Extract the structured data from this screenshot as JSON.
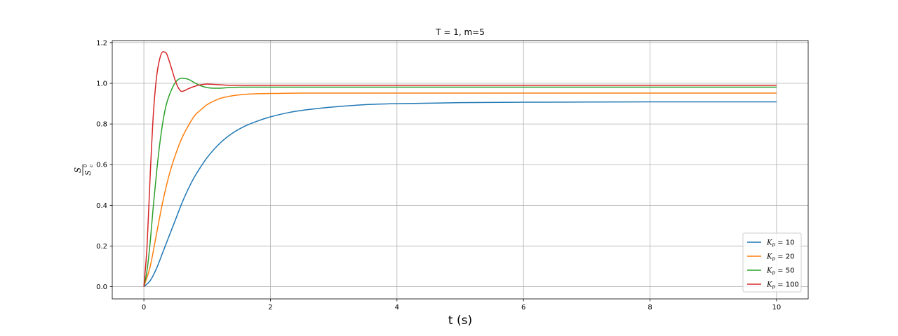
{
  "chart_data": {
    "type": "line",
    "title": "T = 1, m=5",
    "xlabel": "t (s)",
    "ylabel": {
      "numerator": "S",
      "denominator": "S",
      "denominator_sub": "c",
      "denominator_sup": "0"
    },
    "xlim": [
      -0.5,
      10.5
    ],
    "ylim": [
      -0.06,
      1.21
    ],
    "xticks": [
      0,
      2,
      4,
      6,
      8,
      10
    ],
    "xtick_labels": [
      "0",
      "2",
      "4",
      "6",
      "8",
      "10"
    ],
    "yticks": [
      0.0,
      0.2,
      0.4,
      0.6,
      0.8,
      1.0,
      1.2
    ],
    "ytick_labels": [
      "0.0",
      "0.2",
      "0.4",
      "0.6",
      "0.8",
      "1.0",
      "1.2"
    ],
    "grid": true,
    "legend_position": "bottom-right",
    "series": [
      {
        "name_var": "K",
        "name_sub": "p",
        "name_val": "10",
        "color": "#1f77b4",
        "x": [
          0,
          0.1,
          0.2,
          0.3,
          0.4,
          0.5,
          0.6,
          0.7,
          0.8,
          0.9,
          1.0,
          1.2,
          1.4,
          1.6,
          1.8,
          2.0,
          2.3,
          2.6,
          3.0,
          3.5,
          4.0,
          5.0,
          6.0,
          7.0,
          8.0,
          9.0,
          10.0
        ],
        "y": [
          0,
          0.03,
          0.09,
          0.17,
          0.25,
          0.33,
          0.41,
          0.48,
          0.54,
          0.59,
          0.635,
          0.705,
          0.755,
          0.79,
          0.815,
          0.835,
          0.857,
          0.871,
          0.884,
          0.895,
          0.9,
          0.905,
          0.907,
          0.908,
          0.909,
          0.909,
          0.909
        ]
      },
      {
        "name_var": "K",
        "name_sub": "p",
        "name_val": "20",
        "color": "#ff7f0e",
        "x": [
          0,
          0.1,
          0.2,
          0.3,
          0.4,
          0.5,
          0.6,
          0.7,
          0.8,
          0.9,
          1.0,
          1.2,
          1.4,
          1.6,
          1.8,
          2.0,
          2.5,
          3.0,
          4.0,
          5.0,
          6.0,
          8.0,
          10.0
        ],
        "y": [
          0,
          0.1,
          0.26,
          0.42,
          0.55,
          0.65,
          0.73,
          0.79,
          0.84,
          0.87,
          0.895,
          0.925,
          0.939,
          0.946,
          0.949,
          0.95,
          0.952,
          0.952,
          0.952,
          0.952,
          0.952,
          0.952,
          0.952
        ]
      },
      {
        "name_var": "K",
        "name_sub": "p",
        "name_val": "50",
        "color": "#2ca02c",
        "x": [
          0,
          0.05,
          0.1,
          0.15,
          0.2,
          0.25,
          0.3,
          0.35,
          0.4,
          0.5,
          0.6,
          0.7,
          0.8,
          0.9,
          1.0,
          1.1,
          1.2,
          1.3,
          1.4,
          1.6,
          1.8,
          2.0,
          3.0,
          5.0,
          10.0
        ],
        "y": [
          0,
          0.08,
          0.22,
          0.4,
          0.56,
          0.7,
          0.81,
          0.89,
          0.94,
          1.005,
          1.025,
          1.02,
          1.003,
          0.988,
          0.979,
          0.976,
          0.976,
          0.978,
          0.98,
          0.981,
          0.981,
          0.981,
          0.981,
          0.981,
          0.981
        ]
      },
      {
        "name_var": "K",
        "name_sub": "p",
        "name_val": "100",
        "color": "#d62728",
        "x": [
          0,
          0.05,
          0.1,
          0.15,
          0.2,
          0.25,
          0.3,
          0.35,
          0.4,
          0.45,
          0.5,
          0.55,
          0.6,
          0.65,
          0.7,
          0.8,
          0.9,
          1.0,
          1.1,
          1.2,
          1.3,
          1.4,
          1.5,
          1.7,
          2.0,
          3.0,
          5.0,
          10.0
        ],
        "y": [
          0,
          0.2,
          0.55,
          0.85,
          1.03,
          1.12,
          1.155,
          1.15,
          1.11,
          1.06,
          1.01,
          0.975,
          0.96,
          0.965,
          0.973,
          0.985,
          0.993,
          0.996,
          0.995,
          0.993,
          0.991,
          0.99,
          0.99,
          0.99,
          0.99,
          0.99,
          0.99,
          0.99
        ]
      }
    ]
  }
}
